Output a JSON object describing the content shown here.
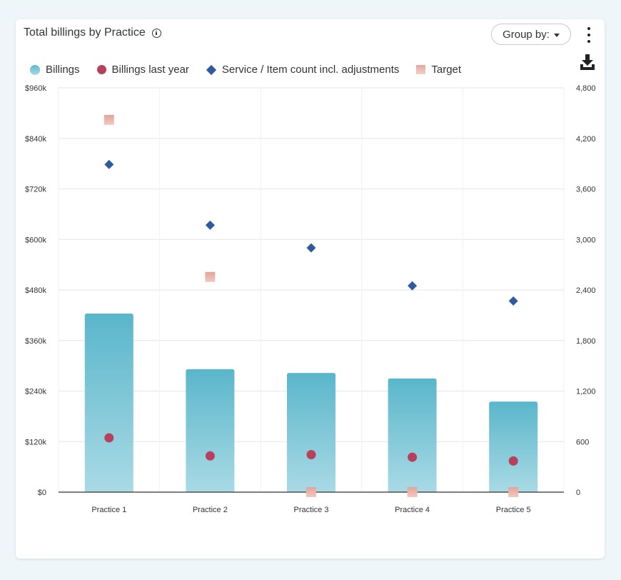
{
  "title": "Total billings by Practice",
  "group_by_label": "Group by:",
  "icons": {
    "info": "info-icon",
    "caret": "caret-down-icon",
    "menu": "kebab-menu-icon",
    "download": "download-icon"
  },
  "legend": [
    {
      "label": "Billings",
      "marker": "circle",
      "color": "#5fb8cd"
    },
    {
      "label": "Billings last year",
      "marker": "circle",
      "color": "#b8405c"
    },
    {
      "label": "Service / Item count incl. adjustments",
      "marker": "diamond",
      "color": "#2e5a9e"
    },
    {
      "label": "Target",
      "marker": "square",
      "color": "#e4a89f"
    }
  ],
  "chart_data": {
    "type": "bar",
    "title": "Total billings by Practice",
    "categories": [
      "Practice 1",
      "Practice 2",
      "Practice 3",
      "Practice 4",
      "Practice 5"
    ],
    "y_left": {
      "range": [
        0,
        960000
      ],
      "ticks": [
        0,
        120000,
        240000,
        360000,
        480000,
        600000,
        720000,
        840000,
        960000
      ],
      "tick_labels": [
        "$0",
        "$120k",
        "$240k",
        "$360k",
        "$480k",
        "$600k",
        "$720k",
        "$840k",
        "$960k"
      ]
    },
    "y_right": {
      "range": [
        0,
        4800
      ],
      "ticks": [
        0,
        600,
        1200,
        1800,
        2400,
        3000,
        3600,
        4200,
        4800
      ],
      "tick_labels": [
        "0",
        "600",
        "1,200",
        "1,800",
        "2,400",
        "3,000",
        "3,600",
        "4,200",
        "4,800"
      ]
    },
    "series": [
      {
        "name": "Billings",
        "type": "bar",
        "axis": "left",
        "color": "#5fb8cd",
        "values": [
          424000,
          292000,
          283000,
          270000,
          215000
        ]
      },
      {
        "name": "Billings last year",
        "type": "circle",
        "axis": "left",
        "color": "#b8405c",
        "values": [
          129000,
          86000,
          89000,
          83000,
          74000
        ]
      },
      {
        "name": "Service / Item count incl. adjustments",
        "type": "diamond",
        "axis": "right",
        "color": "#2e5a9e",
        "values": [
          3890,
          3170,
          2900,
          2450,
          2270
        ]
      },
      {
        "name": "Target",
        "type": "square",
        "axis": "left",
        "color": "#e4a89f",
        "values": [
          884000,
          511000,
          0,
          0,
          0
        ]
      }
    ],
    "grid": true
  }
}
